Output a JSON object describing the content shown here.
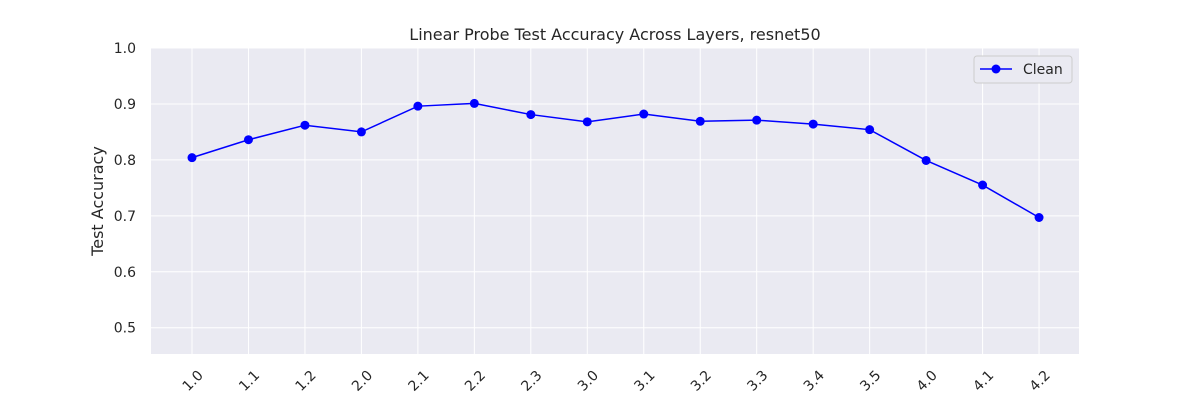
{
  "chart_data": {
    "type": "line",
    "title": "Linear Probe Test Accuracy Across Layers, resnet50",
    "xlabel": "",
    "ylabel": "Test Accuracy",
    "categories": [
      "1.0",
      "1.1",
      "1.2",
      "2.0",
      "2.1",
      "2.2",
      "2.3",
      "3.0",
      "3.1",
      "3.2",
      "3.3",
      "3.4",
      "3.5",
      "4.0",
      "4.1",
      "4.2"
    ],
    "series": [
      {
        "name": "Clean",
        "color": "#0000ff",
        "marker": "circle",
        "values": [
          0.804,
          0.836,
          0.862,
          0.85,
          0.896,
          0.901,
          0.881,
          0.868,
          0.882,
          0.869,
          0.871,
          0.864,
          0.854,
          0.799,
          0.755,
          0.697
        ]
      }
    ],
    "yticks": [
      "0.5",
      "0.6",
      "0.7",
      "0.8",
      "0.9",
      "1.0"
    ],
    "ylim": [
      0.453,
      1.0
    ],
    "grid": true,
    "legend_position": "top-right",
    "background_color": "#eaeaf2",
    "grid_color": "#ffffff"
  }
}
